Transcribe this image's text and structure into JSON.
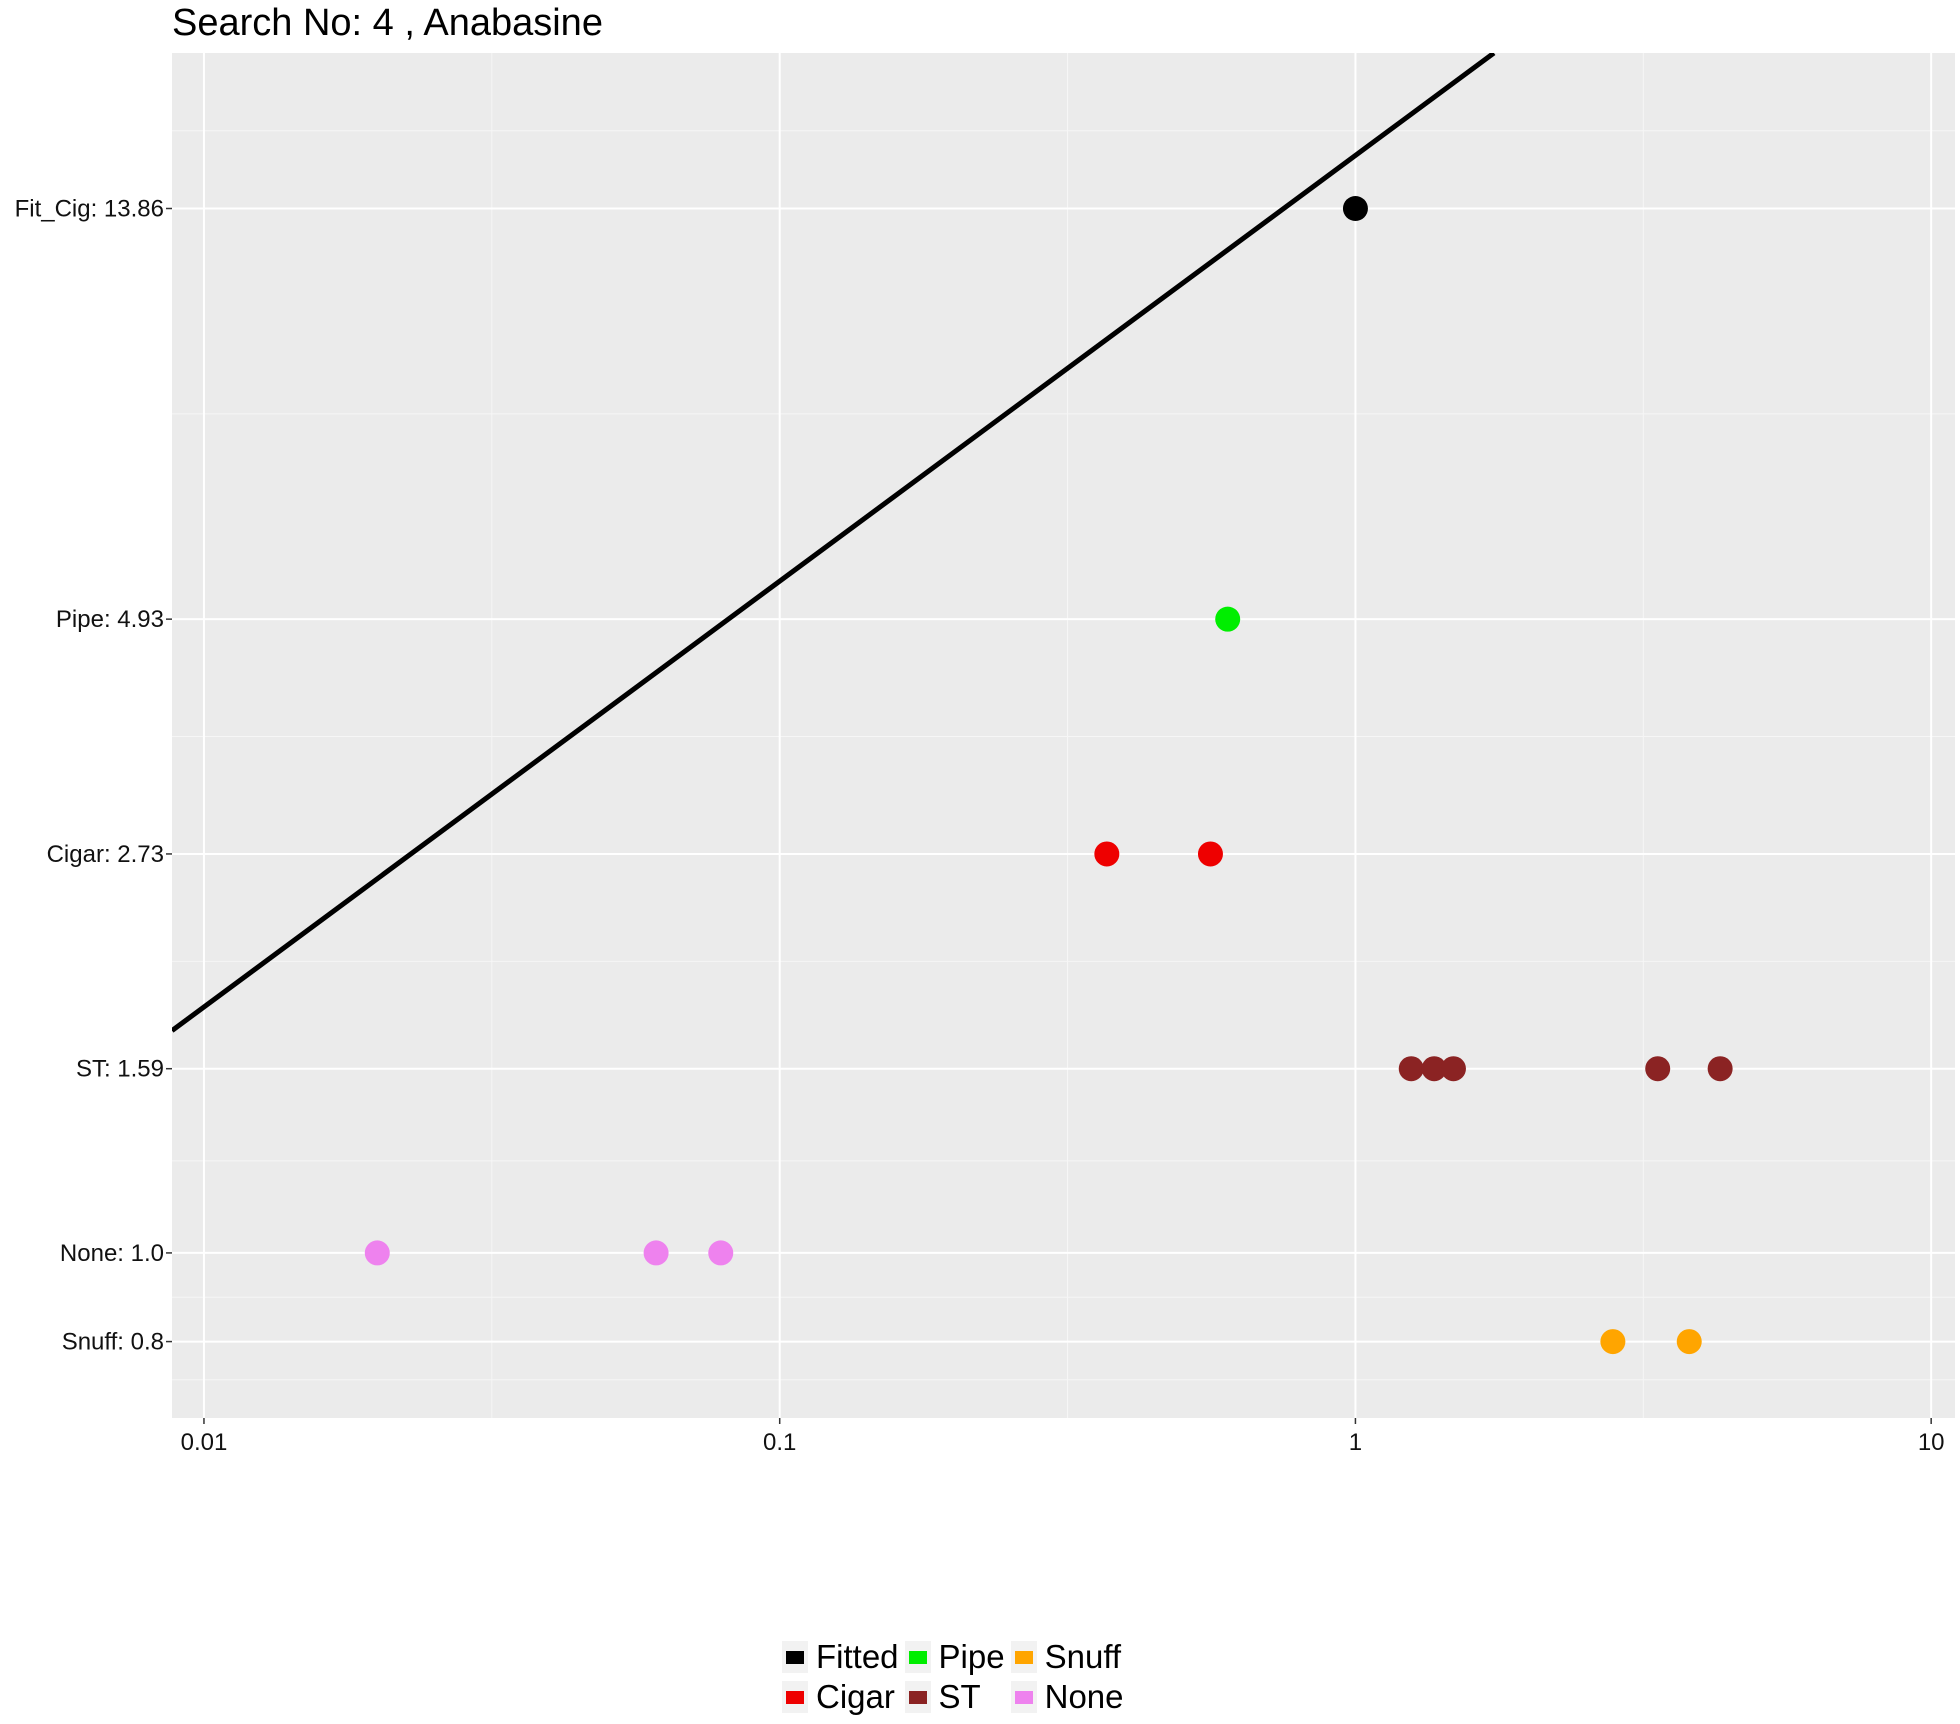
{
  "chart_data": {
    "type": "scatter",
    "title": "Search No: 4 , Anabasine",
    "xlabel": "",
    "ylabel": "",
    "x_scale": "log10",
    "xlim": [
      0.0088,
      11
    ],
    "ylim": [
      0.66,
      20.5
    ],
    "y_scale": "log",
    "x_ticks": [
      {
        "value": 0.01,
        "label": "0.01"
      },
      {
        "value": 0.1,
        "label": "0.1"
      },
      {
        "value": 1,
        "label": "1"
      },
      {
        "value": 10,
        "label": "10"
      }
    ],
    "y_ticks": [
      {
        "value": 13.86,
        "label": "Fit_Cig: 13.86"
      },
      {
        "value": 4.93,
        "label": "Pipe: 4.93"
      },
      {
        "value": 2.73,
        "label": "Cigar: 2.73"
      },
      {
        "value": 1.59,
        "label": "ST: 1.59"
      },
      {
        "value": 1.0,
        "label": "None: 1.0"
      },
      {
        "value": 0.8,
        "label": "Snuff: 0.8"
      }
    ],
    "fitted_line": {
      "x": [
        0.0088,
        1.74
      ],
      "y": [
        1.75,
        20.5
      ],
      "color": "#000000"
    },
    "series": [
      {
        "name": "Fitted",
        "color": "#000000",
        "points": [
          {
            "x": 1.0,
            "y": 13.86
          }
        ]
      },
      {
        "name": "Pipe",
        "color": "#00ee00",
        "points": [
          {
            "x": 0.6,
            "y": 4.93
          }
        ]
      },
      {
        "name": "Snuff",
        "color": "#ffa500",
        "points": [
          {
            "x": 2.8,
            "y": 0.8
          },
          {
            "x": 3.8,
            "y": 0.8
          }
        ]
      },
      {
        "name": "Cigar",
        "color": "#ee0000",
        "points": [
          {
            "x": 0.37,
            "y": 2.73
          },
          {
            "x": 0.56,
            "y": 2.73
          }
        ]
      },
      {
        "name": "ST",
        "color": "#8b2323",
        "points": [
          {
            "x": 1.25,
            "y": 1.59
          },
          {
            "x": 1.37,
            "y": 1.59
          },
          {
            "x": 1.48,
            "y": 1.59
          },
          {
            "x": 3.35,
            "y": 1.59
          },
          {
            "x": 4.3,
            "y": 1.59
          }
        ]
      },
      {
        "name": "None",
        "color": "#ee82ee",
        "points": [
          {
            "x": 0.02,
            "y": 1.0
          },
          {
            "x": 0.061,
            "y": 1.0
          },
          {
            "x": 0.079,
            "y": 1.0
          }
        ]
      }
    ],
    "grid": true,
    "legend_position": "bottom"
  }
}
